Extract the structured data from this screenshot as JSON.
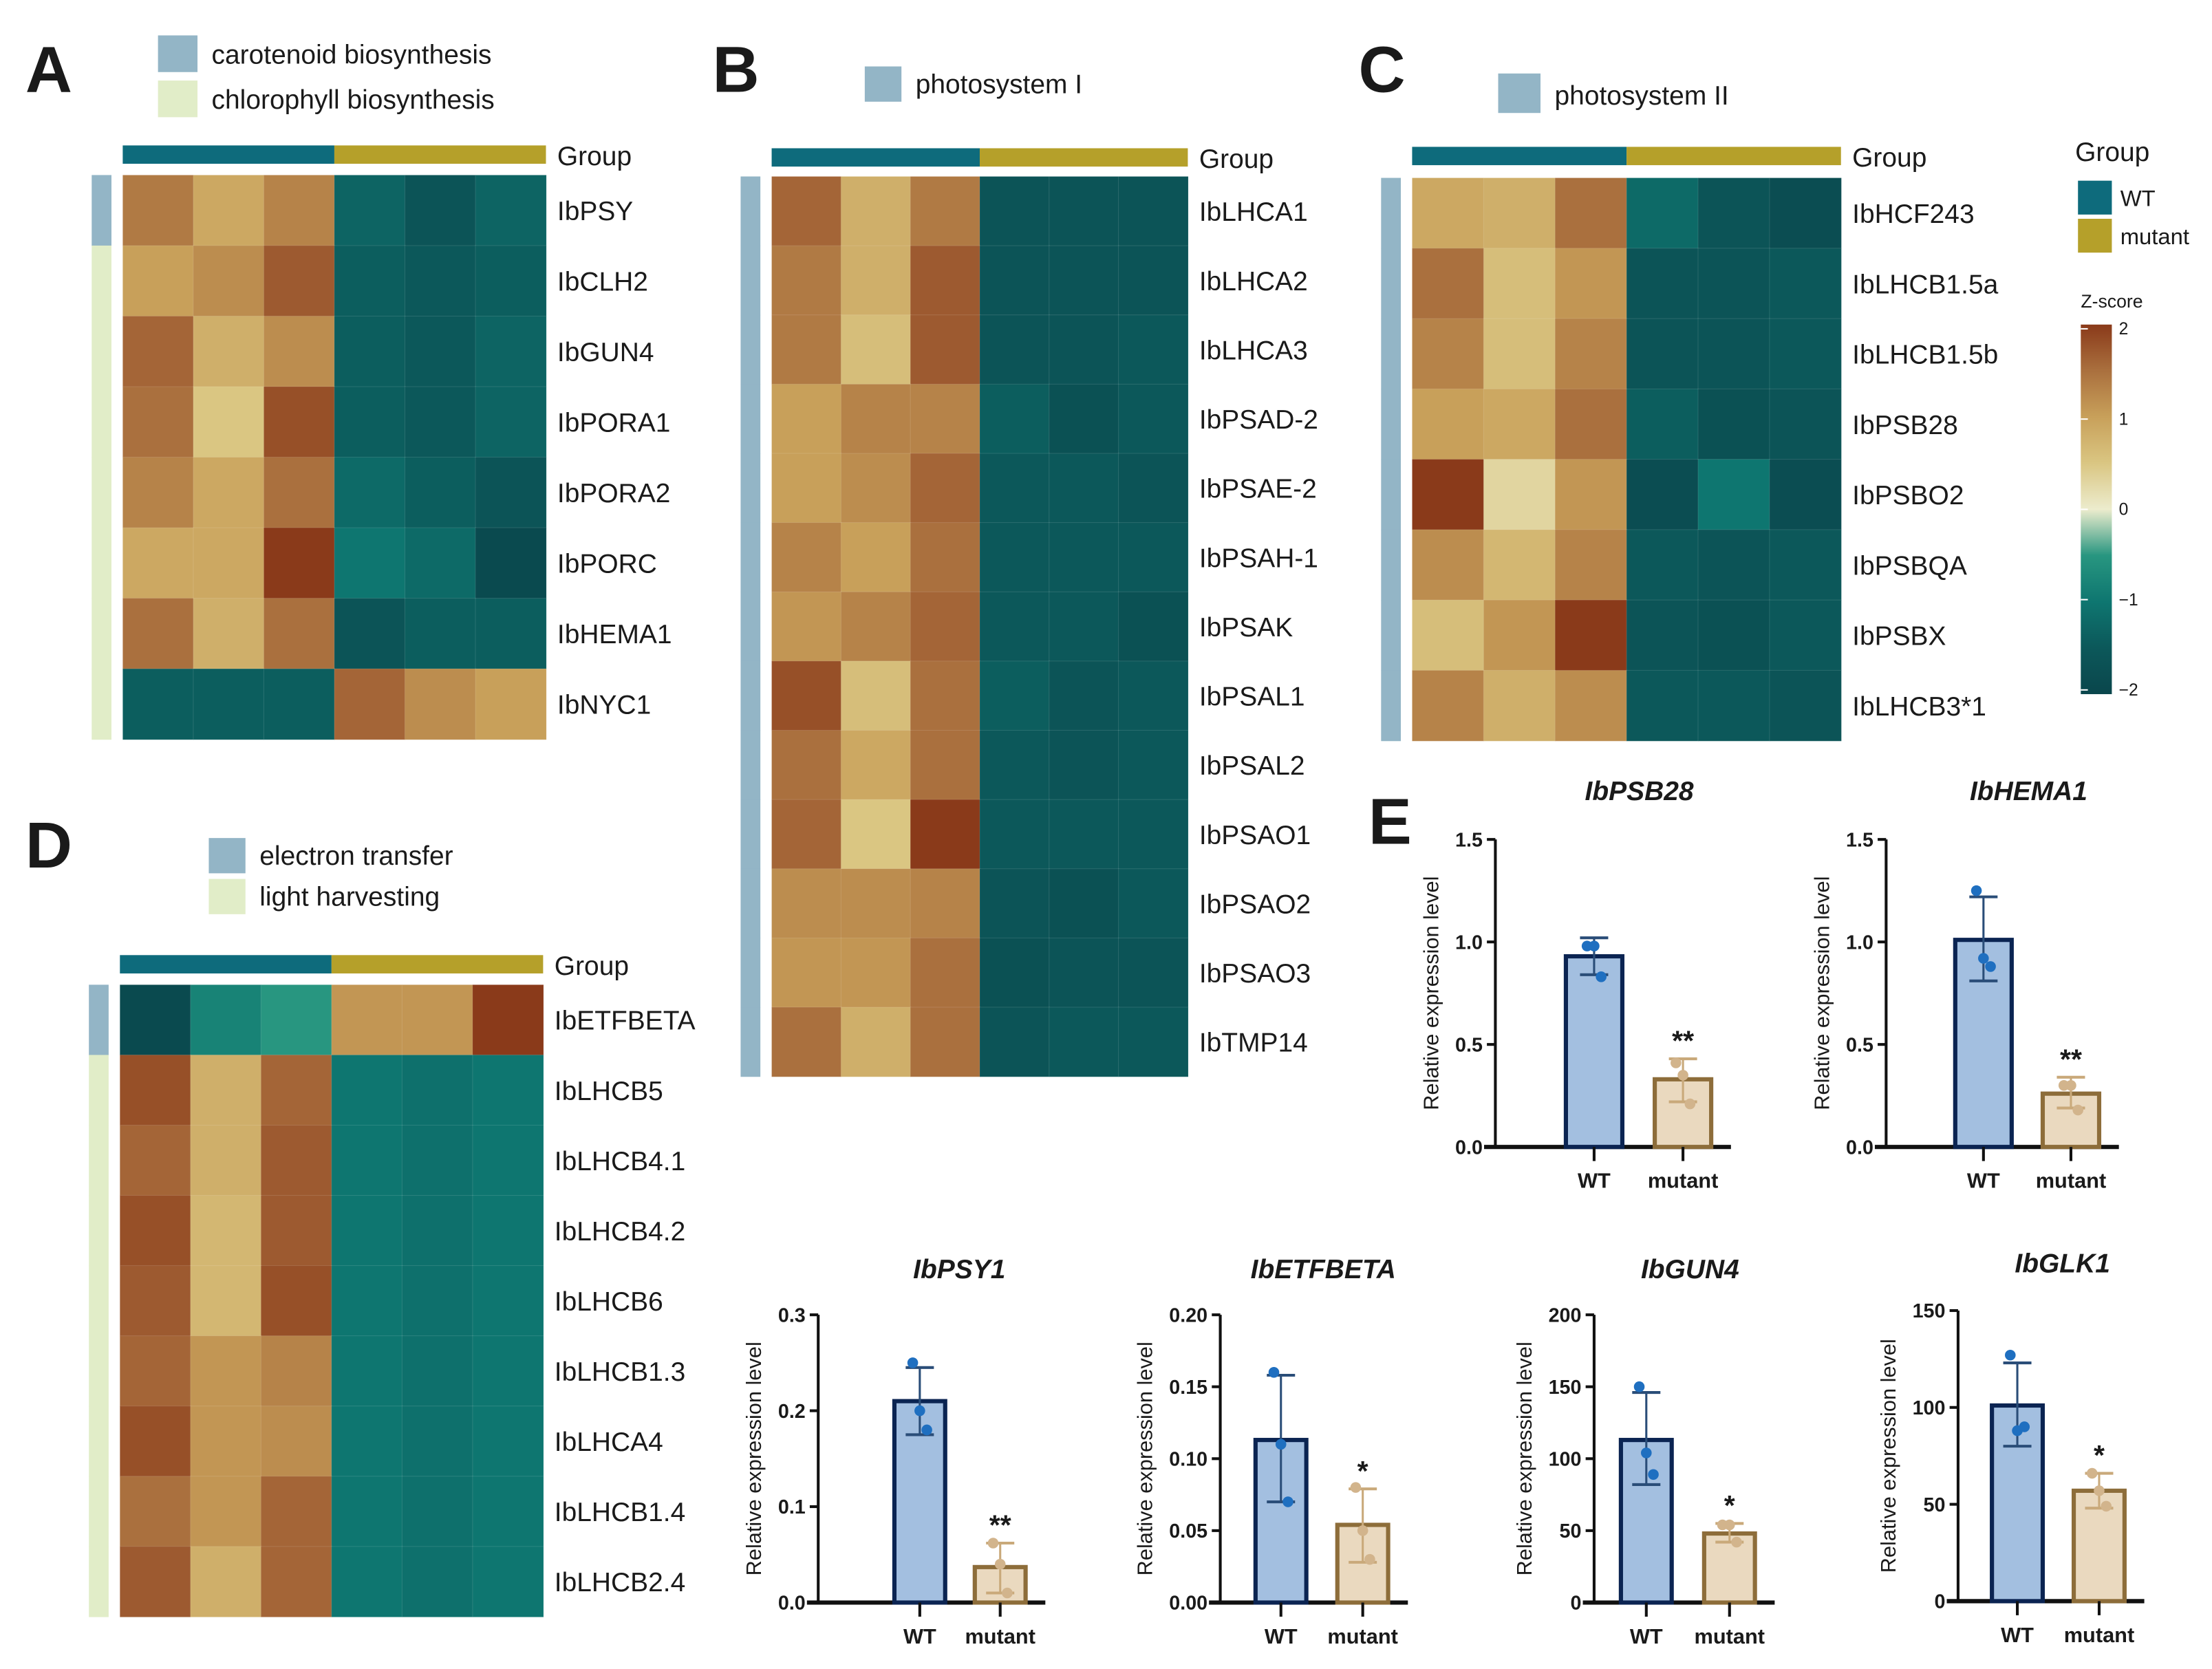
{
  "colors": {
    "wt": "#0e6b7c",
    "mutant": "#b5a02a",
    "annot_blue": "#93b5c6",
    "annot_green": "#e1edc8",
    "bar_wt": "#a3bfe0",
    "bar_wt_edge": "#0b2452",
    "bar_mut": "#ead9bf",
    "bar_mut_edge": "#8d6d3a",
    "pt_wt": "#1f6fc0",
    "pt_mut": "#d2b48c"
  },
  "group_legend": {
    "title": "Group",
    "items": [
      "WT",
      "mutant"
    ],
    "zscore_title": "Z-score",
    "ticks": [
      "2",
      "1",
      "0",
      "−1",
      "−2"
    ]
  },
  "group_label": "Group",
  "panels": {
    "A": {
      "letter": "A",
      "legend": [
        "carotenoid biosynthesis",
        "chlorophyll biosynthesis"
      ],
      "genes": [
        "IbPSY",
        "IbCLH2",
        "IbGUN4",
        "IbPORA1",
        "IbPORA2",
        "IbPORC",
        "IbHEMA1",
        "IbNYC1"
      ],
      "annot": [
        0,
        1,
        1,
        1,
        1,
        1,
        1,
        1
      ],
      "z": [
        [
          1.4,
          0.9,
          1.3,
          -1.3,
          -1.6,
          -1.3
        ],
        [
          1.0,
          1.2,
          1.7,
          -1.4,
          -1.5,
          -1.4
        ],
        [
          1.6,
          0.8,
          1.2,
          -1.4,
          -1.5,
          -1.3
        ],
        [
          1.5,
          0.5,
          1.8,
          -1.4,
          -1.5,
          -1.3
        ],
        [
          1.3,
          0.9,
          1.5,
          -1.2,
          -1.4,
          -1.6
        ],
        [
          0.9,
          0.9,
          2.0,
          -1.0,
          -1.2,
          -1.9
        ],
        [
          1.5,
          0.8,
          1.5,
          -1.6,
          -1.4,
          -1.4
        ],
        [
          -1.4,
          -1.4,
          -1.4,
          1.6,
          1.2,
          1.0
        ]
      ]
    },
    "B": {
      "letter": "B",
      "legend": [
        "photosystem I"
      ],
      "genes": [
        "IbLHCA1",
        "IbLHCA2",
        "IbLHCA3",
        "IbPSAD-2",
        "IbPSAE-2",
        "IbPSAH-1",
        "IbPSAK",
        "IbPSAL1",
        "IbPSAL2",
        "IbPSAO1",
        "IbPSAO2",
        "IbPSAO3",
        "IbTMP14"
      ],
      "annot": [
        0,
        0,
        0,
        0,
        0,
        0,
        0,
        0,
        0,
        0,
        0,
        0,
        0
      ],
      "z": [
        [
          1.6,
          0.8,
          1.4,
          -1.6,
          -1.6,
          -1.6
        ],
        [
          1.4,
          0.8,
          1.7,
          -1.6,
          -1.6,
          -1.6
        ],
        [
          1.4,
          0.6,
          1.7,
          -1.6,
          -1.6,
          -1.5
        ],
        [
          1.0,
          1.3,
          1.3,
          -1.4,
          -1.7,
          -1.5
        ],
        [
          1.0,
          1.2,
          1.6,
          -1.5,
          -1.5,
          -1.6
        ],
        [
          1.3,
          1.0,
          1.5,
          -1.5,
          -1.5,
          -1.5
        ],
        [
          1.1,
          1.3,
          1.6,
          -1.5,
          -1.5,
          -1.7
        ],
        [
          1.8,
          0.6,
          1.5,
          -1.4,
          -1.6,
          -1.5
        ],
        [
          1.5,
          0.9,
          1.5,
          -1.5,
          -1.6,
          -1.5
        ],
        [
          1.6,
          0.5,
          2.0,
          -1.5,
          -1.5,
          -1.5
        ],
        [
          1.2,
          1.2,
          1.3,
          -1.6,
          -1.7,
          -1.5
        ],
        [
          1.1,
          1.1,
          1.5,
          -1.7,
          -1.6,
          -1.6
        ],
        [
          1.5,
          0.8,
          1.5,
          -1.6,
          -1.5,
          -1.5
        ]
      ]
    },
    "C": {
      "letter": "C",
      "legend": [
        "photosystem II"
      ],
      "genes": [
        "IbHCF243",
        "IbLHCB1.5a",
        "IbLHCB1.5b",
        "IbPSB28",
        "IbPSBO2",
        "IbPSBQA",
        "IbPSBX",
        "IbLHCB3*1"
      ],
      "annot": [
        0,
        0,
        0,
        0,
        0,
        0,
        0,
        0
      ],
      "z": [
        [
          0.9,
          0.8,
          1.5,
          -1.2,
          -1.6,
          -1.8
        ],
        [
          1.5,
          0.6,
          1.1,
          -1.6,
          -1.6,
          -1.5
        ],
        [
          1.3,
          0.6,
          1.3,
          -1.6,
          -1.6,
          -1.5
        ],
        [
          1.0,
          0.9,
          1.5,
          -1.4,
          -1.7,
          -1.6
        ],
        [
          2.0,
          0.3,
          1.1,
          -1.8,
          -1.0,
          -1.8
        ],
        [
          1.2,
          0.7,
          1.3,
          -1.5,
          -1.6,
          -1.5
        ],
        [
          0.6,
          1.1,
          2.0,
          -1.6,
          -1.7,
          -1.5
        ],
        [
          1.3,
          0.8,
          1.2,
          -1.5,
          -1.5,
          -1.6
        ]
      ]
    },
    "D": {
      "letter": "D",
      "legend": [
        "electron transfer",
        "light harvesting"
      ],
      "genes": [
        "IbETFBETA",
        "IbLHCB5",
        "IbLHCB4.1",
        "IbLHCB4.2",
        "IbLHCB6",
        "IbLHCB1.3",
        "IbLHCA4",
        "IbLHCB1.4",
        "IbLHCB2.4"
      ],
      "annot": [
        0,
        1,
        1,
        1,
        1,
        1,
        1,
        1,
        1
      ],
      "z": [
        [
          -1.9,
          -0.8,
          -0.5,
          1.1,
          1.1,
          2.0
        ],
        [
          1.8,
          0.8,
          1.6,
          -1.0,
          -1.1,
          -1.0
        ],
        [
          1.6,
          0.8,
          1.7,
          -1.0,
          -1.1,
          -1.0
        ],
        [
          1.8,
          0.7,
          1.7,
          -1.0,
          -1.1,
          -1.0
        ],
        [
          1.7,
          0.7,
          1.8,
          -1.0,
          -1.1,
          -1.0
        ],
        [
          1.6,
          1.1,
          1.3,
          -1.0,
          -1.1,
          -1.0
        ],
        [
          1.8,
          1.1,
          1.2,
          -1.0,
          -1.1,
          -1.0
        ],
        [
          1.5,
          1.1,
          1.6,
          -1.0,
          -1.1,
          -1.0
        ],
        [
          1.7,
          0.8,
          1.6,
          -1.0,
          -1.1,
          -1.0
        ]
      ]
    },
    "E": {
      "letter": "E"
    }
  },
  "chart_data": [
    {
      "type": "bar",
      "title": "IbPSB28",
      "ylabel": "Relative expression level",
      "categories": [
        "WT",
        "mutant"
      ],
      "ylim": [
        0,
        1.5
      ],
      "ticks": [
        "0.0",
        "0.5",
        "1.0",
        "1.5"
      ],
      "tickvals": [
        0,
        0.5,
        1.0,
        1.5
      ],
      "values": [
        0.93,
        0.33
      ],
      "err_low": [
        0.84,
        0.22
      ],
      "err_high": [
        1.02,
        0.43
      ],
      "points": [
        [
          0.98,
          0.98,
          0.83
        ],
        [
          0.41,
          0.35,
          0.21
        ]
      ],
      "sig": [
        "",
        "**"
      ]
    },
    {
      "type": "bar",
      "title": "IbHEMA1",
      "ylabel": "Relative expression level",
      "categories": [
        "WT",
        "mutant"
      ],
      "ylim": [
        0,
        1.5
      ],
      "ticks": [
        "0.0",
        "0.5",
        "1.0",
        "1.5"
      ],
      "tickvals": [
        0,
        0.5,
        1.0,
        1.5
      ],
      "values": [
        1.01,
        0.26
      ],
      "err_low": [
        0.81,
        0.19
      ],
      "err_high": [
        1.22,
        0.34
      ],
      "points": [
        [
          1.25,
          0.92,
          0.88
        ],
        [
          0.3,
          0.3,
          0.18
        ]
      ],
      "sig": [
        "",
        "**"
      ]
    },
    {
      "type": "bar",
      "title": "IbPSY1",
      "ylabel": "Relative expression level",
      "categories": [
        "WT",
        "mutant"
      ],
      "ylim": [
        0,
        0.3
      ],
      "ticks": [
        "0.0",
        "0.1",
        "0.2",
        "0.3"
      ],
      "tickvals": [
        0,
        0.1,
        0.2,
        0.3
      ],
      "values": [
        0.21,
        0.037
      ],
      "err_low": [
        0.175,
        0.01
      ],
      "err_high": [
        0.245,
        0.062
      ],
      "points": [
        [
          0.25,
          0.2,
          0.18
        ],
        [
          0.062,
          0.04,
          0.01
        ]
      ],
      "sig": [
        "",
        "**"
      ]
    },
    {
      "type": "bar",
      "title": "IbETFBETA",
      "ylabel": "Relative expression level",
      "categories": [
        "WT",
        "mutant"
      ],
      "ylim": [
        0,
        0.2
      ],
      "ticks": [
        "0.00",
        "0.05",
        "0.10",
        "0.15",
        "0.20"
      ],
      "tickvals": [
        0,
        0.05,
        0.1,
        0.15,
        0.2
      ],
      "values": [
        0.113,
        0.054
      ],
      "err_low": [
        0.07,
        0.028
      ],
      "err_high": [
        0.158,
        0.079
      ],
      "points": [
        [
          0.16,
          0.11,
          0.07
        ],
        [
          0.08,
          0.05,
          0.03
        ]
      ],
      "sig": [
        "",
        "*"
      ]
    },
    {
      "type": "bar",
      "title": "IbGUN4",
      "ylabel": "Relative expression level",
      "categories": [
        "WT",
        "mutant"
      ],
      "ylim": [
        0,
        200
      ],
      "ticks": [
        "0",
        "50",
        "100",
        "150",
        "200"
      ],
      "tickvals": [
        0,
        50,
        100,
        150,
        200
      ],
      "values": [
        113,
        48
      ],
      "err_low": [
        82,
        42
      ],
      "err_high": [
        146,
        55
      ],
      "points": [
        [
          150,
          104,
          89
        ],
        [
          54,
          54,
          42
        ]
      ],
      "sig": [
        "",
        "*"
      ]
    },
    {
      "type": "bar",
      "title": "IbGLK1",
      "ylabel": "Relative expression level",
      "categories": [
        "WT",
        "mutant"
      ],
      "ylim": [
        0,
        150
      ],
      "ticks": [
        "0",
        "50",
        "100",
        "150"
      ],
      "tickvals": [
        0,
        50,
        100,
        150
      ],
      "values": [
        101,
        57
      ],
      "err_low": [
        80,
        48
      ],
      "err_high": [
        123,
        66
      ],
      "points": [
        [
          127,
          88,
          90
        ],
        [
          66,
          57,
          49
        ]
      ],
      "sig": [
        "",
        "*"
      ]
    }
  ]
}
